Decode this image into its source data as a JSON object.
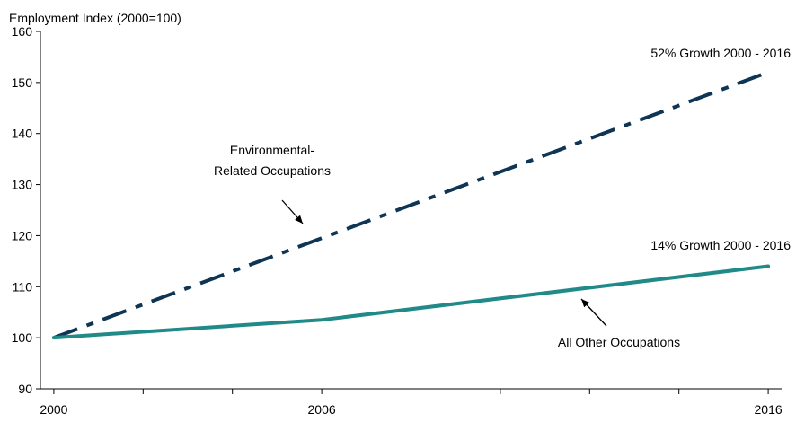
{
  "chart_data": {
    "type": "line",
    "title": "",
    "xlabel": "",
    "ylabel": "Employment Index (2000=100)",
    "ylim": [
      90,
      160
    ],
    "xlim": [
      1999.7,
      2016.3
    ],
    "yticks": [
      90,
      100,
      110,
      120,
      130,
      140,
      150,
      160
    ],
    "xtick_labels": [
      {
        "x": 2000,
        "label": "2000"
      },
      {
        "x": 2006,
        "label": "2006"
      },
      {
        "x": 2016,
        "label": "2016"
      }
    ],
    "x_minor_ticks": [
      2000,
      2002,
      2004,
      2006,
      2008,
      2010,
      2012,
      2014,
      2016
    ],
    "grid": false,
    "series": [
      {
        "key": "environmental",
        "color": "#0f3555",
        "style": "dash-dot",
        "points": [
          {
            "x": 2000,
            "y": 100
          },
          {
            "x": 2016,
            "y": 152
          }
        ]
      },
      {
        "key": "other",
        "color": "#1f8a88",
        "style": "solid",
        "points": [
          {
            "x": 2000,
            "y": 100
          },
          {
            "x": 2006,
            "y": 103.5
          },
          {
            "x": 2016,
            "y": 114
          }
        ]
      }
    ],
    "annotations": {
      "env_growth": "52% Growth 2000 - 2016",
      "other_growth": "14% Growth 2000 - 2016",
      "env_label_line1": "Environmental-",
      "env_label_line2": "Related Occupations",
      "other_label": "All Other Occupations"
    }
  }
}
